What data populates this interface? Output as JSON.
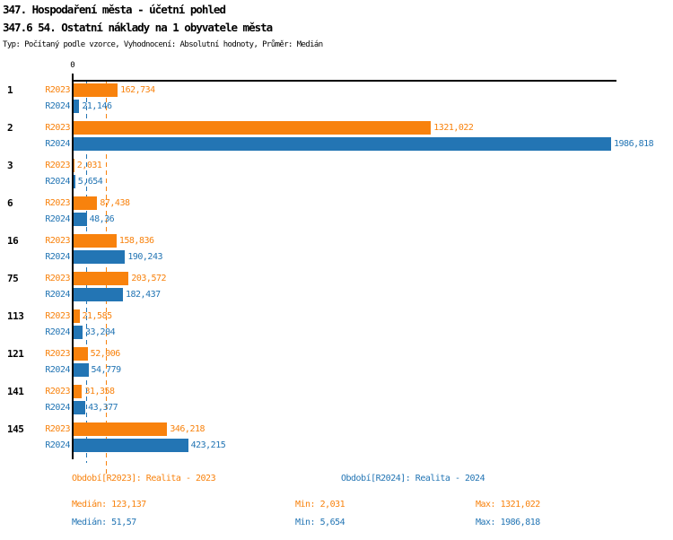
{
  "header": {
    "title1": "347. Hospodaření města - účetní pohled",
    "title2": "347.6 54. Ostatní náklady na 1 obyvatele města",
    "subtitle": "Typ: Počítaný podle vzorce, Vyhodnocení: Absolutní hodnoty, Průměr: Medián"
  },
  "chart_data": {
    "type": "bar",
    "orientation": "horizontal",
    "title": "347.6 54. Ostatní náklady na 1 obyvatele města",
    "axis_zero_label": "0",
    "xlim": [
      0,
      2010
    ],
    "grid": false,
    "categories": [
      "1",
      "2",
      "3",
      "6",
      "16",
      "75",
      "113",
      "121",
      "141",
      "145"
    ],
    "series": [
      {
        "name": "R2023",
        "color": "#F8820D",
        "values": [
          162.734,
          1321.022,
          2.031,
          87.438,
          158.836,
          203.572,
          21.585,
          52.006,
          31.358,
          346.218
        ],
        "labels": [
          "162,734",
          "1321,022",
          "2,031",
          "87,438",
          "158,836",
          "203,572",
          "21,585",
          "52,006",
          "31,358",
          "346,218"
        ],
        "median": 123.137,
        "min": 2.031,
        "max": 1321.022
      },
      {
        "name": "R2024",
        "color": "#2375B4",
        "values": [
          21.146,
          1986.818,
          5.654,
          48.36,
          190.243,
          182.437,
          33.204,
          54.779,
          43.377,
          423.215
        ],
        "labels": [
          "21,146",
          "1986,818",
          "5,654",
          "48,36",
          "190,243",
          "182,437",
          "33,204",
          "54,779",
          "43,377",
          "423,215"
        ],
        "median": 51.57,
        "min": 5.654,
        "max": 1986.818
      }
    ]
  },
  "legend": {
    "r2023": "Období[R2023]: Realita - 2023",
    "r2024": "Období[R2024]: Realita - 2024"
  },
  "stats": {
    "r2023": {
      "median": "Medián: 123,137",
      "min": "Min: 2,031",
      "max": "Max: 1321,022"
    },
    "r2024": {
      "median": "Medián: 51,57",
      "min": "Min: 5,654",
      "max": "Max: 1986,818"
    }
  }
}
